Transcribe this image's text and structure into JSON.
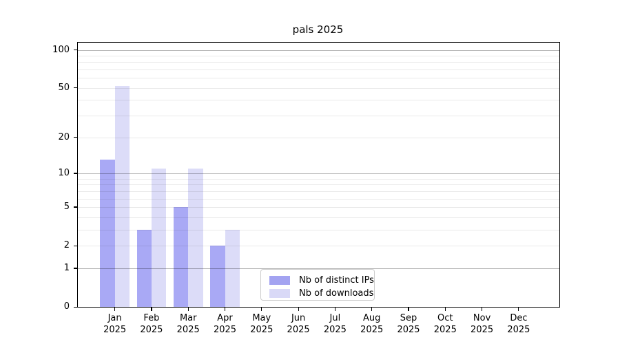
{
  "title": "pals 2025",
  "year_label": "2025",
  "colors": {
    "background": "#ffffff",
    "axis_frame": "#000000",
    "grid_major": "rgba(0,0,0,0.30)",
    "grid_minor": "rgba(0,0,0,0.085)",
    "legend_border": "#cccccc",
    "ips_bar": "rgba(136,136,241,0.72)",
    "downloads_bar": "rgba(206,206,245,0.72)",
    "ips_legend_swatch": "#a3a3f1",
    "downloads_legend_swatch": "#d9d9f7"
  },
  "chart_data": {
    "type": "bar",
    "title": "pals 2025",
    "categories": [
      "Jan",
      "Feb",
      "Mar",
      "Apr",
      "May",
      "Jun",
      "Jul",
      "Aug",
      "Sep",
      "Oct",
      "Nov",
      "Dec"
    ],
    "category_year": "2025",
    "series": [
      {
        "name": "Nb of distinct IPs",
        "values": [
          13,
          3,
          5,
          2,
          0,
          0,
          0,
          0,
          0,
          0,
          0,
          0
        ],
        "color": "rgba(136,136,241,0.72)",
        "legend_color": "#a3a3f1"
      },
      {
        "name": "Nb of downloads",
        "values": [
          52,
          11,
          11,
          3,
          0,
          0,
          0,
          0,
          0,
          0,
          0,
          0
        ],
        "color": "rgba(206,206,245,0.72)",
        "legend_color": "#d9d9f7"
      }
    ],
    "xlabel": "",
    "ylabel": "",
    "yscale": "log1p",
    "ylim": [
      0,
      114
    ],
    "yticks": [
      0,
      1,
      2,
      5,
      10,
      20,
      50,
      100
    ],
    "grid_major_values": [
      1,
      10,
      100
    ],
    "grid_minor_values": [
      2,
      3,
      4,
      5,
      6,
      7,
      8,
      9,
      20,
      30,
      40,
      50,
      60,
      70,
      80,
      90
    ],
    "grid": "on",
    "legend_position": "lower center inside"
  }
}
